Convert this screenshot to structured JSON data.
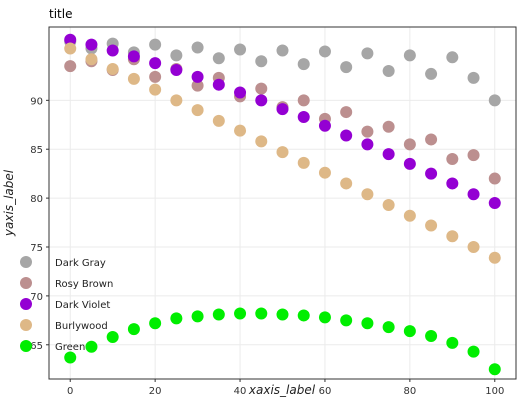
{
  "chart_data": {
    "type": "line",
    "title": "title",
    "xlabel": "xaxis_label",
    "ylabel": "yaxis_label",
    "xlim": [
      -5,
      105
    ],
    "ylim": [
      61.5,
      97.5
    ],
    "xticks": [
      0,
      20,
      40,
      60,
      80,
      100
    ],
    "yticks": [
      65,
      70,
      75,
      80,
      85,
      90
    ],
    "grid": true,
    "legend_placement": "left",
    "x": [
      0,
      5,
      10,
      15,
      20,
      25,
      30,
      35,
      40,
      45,
      50,
      55,
      60,
      65,
      70,
      75,
      80,
      85,
      90,
      95,
      100
    ],
    "series": [
      {
        "name": "Dark Gray",
        "color": "#a6a6a6",
        "values": [
          96.0,
          95.3,
          95.8,
          94.9,
          95.7,
          94.6,
          95.4,
          94.3,
          95.2,
          94.0,
          95.1,
          93.7,
          95.0,
          93.4,
          94.8,
          93.0,
          94.6,
          92.7,
          94.4,
          92.3,
          90.0
        ]
      },
      {
        "name": "Rosy Brown",
        "color": "#bc8f8f",
        "values": [
          93.5,
          94.0,
          93.1,
          94.2,
          92.4,
          93.2,
          91.5,
          92.3,
          90.4,
          91.2,
          89.3,
          90.0,
          88.1,
          88.8,
          86.8,
          87.3,
          85.5,
          86.0,
          84.0,
          84.4,
          82.0
        ]
      },
      {
        "name": "Dark Violet",
        "color": "#9400d3",
        "values": [
          96.2,
          95.7,
          95.1,
          94.5,
          93.8,
          93.1,
          92.4,
          91.6,
          90.8,
          90.0,
          89.1,
          88.3,
          87.4,
          86.4,
          85.5,
          84.5,
          83.5,
          82.5,
          81.5,
          80.4,
          79.5
        ]
      },
      {
        "name": "Burlywood",
        "color": "#deb887",
        "values": [
          95.3,
          94.2,
          93.2,
          92.2,
          91.1,
          90.0,
          89.0,
          87.9,
          86.9,
          85.8,
          84.7,
          83.6,
          82.6,
          81.5,
          80.4,
          79.3,
          78.2,
          77.2,
          76.1,
          75.0,
          73.9
        ]
      },
      {
        "name": "Green",
        "color": "#00ee00",
        "values": [
          63.7,
          64.8,
          65.8,
          66.6,
          67.2,
          67.7,
          67.9,
          68.1,
          68.2,
          68.2,
          68.1,
          68.0,
          67.8,
          67.5,
          67.2,
          66.8,
          66.4,
          65.9,
          65.2,
          64.3,
          62.5
        ]
      }
    ]
  }
}
